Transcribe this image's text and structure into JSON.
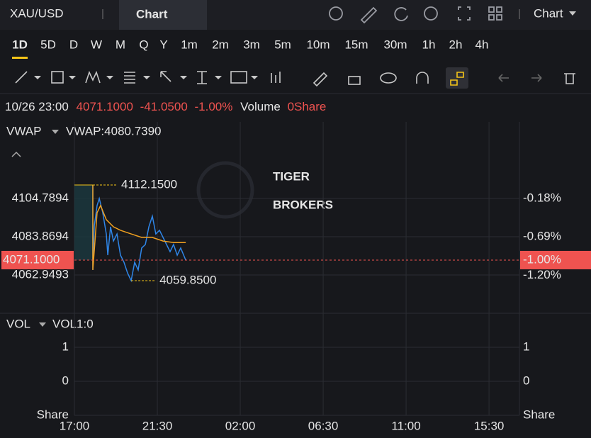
{
  "header": {
    "symbol": "XAU/USD",
    "tab": "Chart",
    "menu": "Chart"
  },
  "timeframes": [
    "1D",
    "5D",
    "D",
    "W",
    "M",
    "Q",
    "Y",
    "1m",
    "2m",
    "3m",
    "5m",
    "10m",
    "15m",
    "30m",
    "1h",
    "2h",
    "4h"
  ],
  "active_timeframe": 0,
  "quote": {
    "time": "10/26 23:00",
    "price": "4071.1000",
    "change": "-41.0500",
    "change_pct": "-1.00%",
    "volume_label": "Volume",
    "volume": "0Share"
  },
  "indicator": {
    "name": "VWAP",
    "value": "VWAP:4080.7390"
  },
  "watermark": [
    "TIGER",
    "BROKERS"
  ],
  "price_chart": {
    "type": "line",
    "xlim": [
      0,
      24.15
    ],
    "xticks": [
      {
        "value": 0,
        "label": "17:00"
      },
      {
        "value": 4.5,
        "label": "21:30"
      },
      {
        "value": 9,
        "label": "02:00"
      },
      {
        "value": 13.5,
        "label": "06:30"
      },
      {
        "value": 18,
        "label": "11:00"
      },
      {
        "value": 22.5,
        "label": "15:30"
      }
    ],
    "ylim": [
      4042.03,
      4146.63
    ],
    "yticks": [
      4104.7894,
      4083.8694,
      {
        "value": 4062.9493,
        "label": "4062.9493"
      }
    ],
    "y2lim": [
      -1.705,
      0.838
    ],
    "y2ticks": [
      {
        "value": -0.18,
        "label": "-0.18%"
      },
      {
        "value": -0.69,
        "label": "-0.69%"
      },
      {
        "value": -1.2,
        "label": "-1.20%"
      }
    ],
    "grid": true,
    "series": [
      {
        "color": "#2f86e8",
        "x": [
          1.0,
          1.0,
          1.08,
          1.23,
          1.35,
          1.54,
          1.73,
          1.81,
          1.96,
          2.12,
          2.31,
          2.5,
          2.69,
          2.88,
          3.08,
          3.27,
          3.46,
          3.65,
          3.85,
          4.04,
          4.23,
          4.42,
          4.62,
          4.81,
          5.0,
          5.19,
          5.38,
          5.58,
          5.77,
          6.04
        ],
        "values": [
          4112.15,
          4065.7,
          4090.0,
          4100.9,
          4104.8,
          4097.0,
          4085.4,
          4073.8,
          4089.3,
          4081.5,
          4085.4,
          4073.8,
          4069.9,
          4064.1,
          4059.85,
          4069.9,
          4065.7,
          4077.7,
          4079.6,
          4089.3,
          4095.1,
          4085.4,
          4087.4,
          4083.5,
          4079.6,
          4075.7,
          4079.6,
          4073.8,
          4077.7,
          4071.1
        ]
      },
      {
        "name": "VWAP",
        "color": "#f0a020",
        "x": [
          1.0,
          1.0,
          1.23,
          1.42,
          1.73,
          2.12,
          2.5,
          3.08,
          3.65,
          4.23,
          4.81,
          5.38,
          6.04
        ],
        "values": [
          4112.15,
          4065.7,
          4097.0,
          4100.9,
          4093.2,
          4089.3,
          4087.4,
          4085.4,
          4083.5,
          4083.5,
          4081.5,
          4080.7,
          4080.7
        ]
      }
    ],
    "high": {
      "x": 1.0,
      "value": 4112.15,
      "label": "4112.1500"
    },
    "low": {
      "x": 3.08,
      "value": 4059.85,
      "label": "4059.8500"
    },
    "current": {
      "value": 4071.1,
      "label": "4071.1000",
      "pct_label": "-1.00%"
    }
  },
  "volume_chart": {
    "indicator": "VOL",
    "value": "VOL1:0",
    "unit_label": "Share",
    "ylim": [
      -1,
      2
    ],
    "yticks": [
      1,
      0
    ]
  }
}
